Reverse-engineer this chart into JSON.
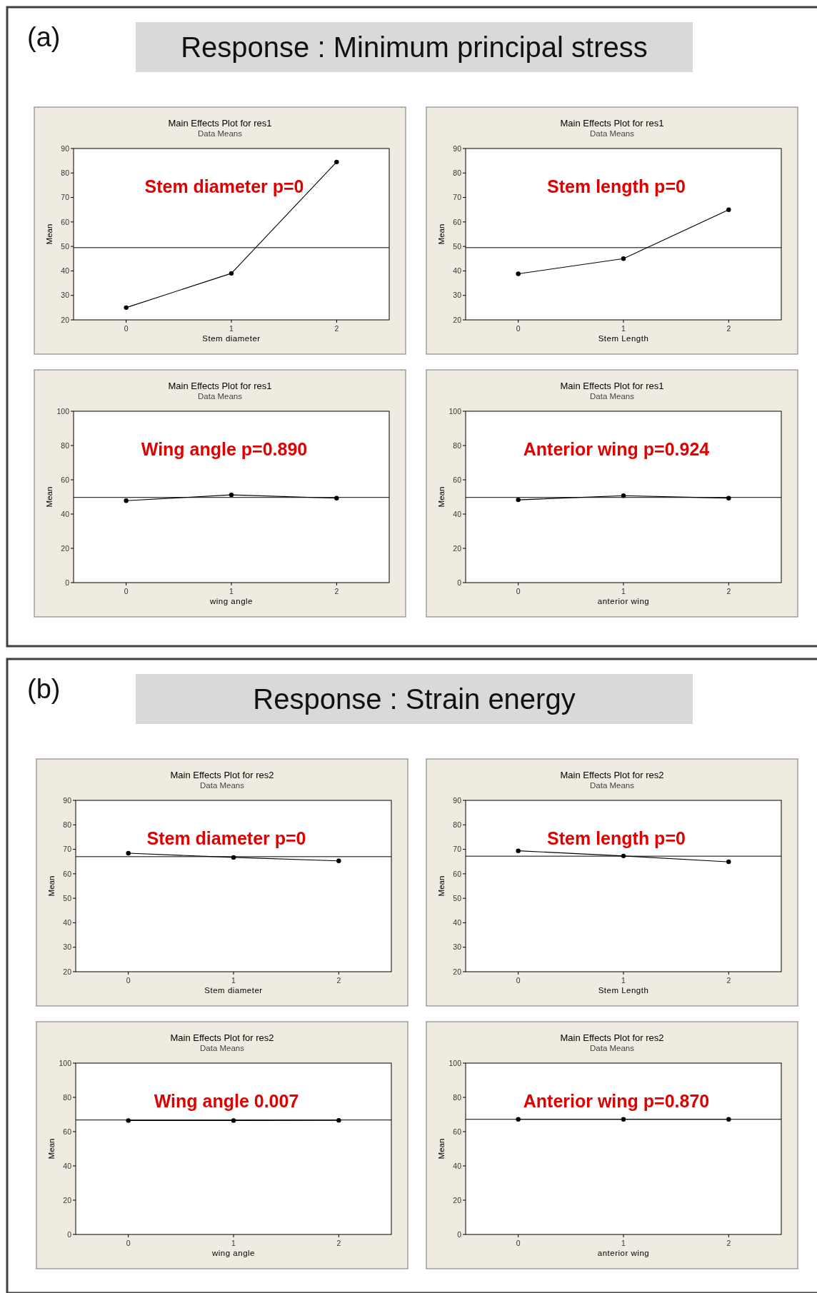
{
  "chart_data": [
    {
      "type": "other",
      "title": "Response : Minimum principal stress",
      "annotations": [
        "(a)"
      ]
    },
    {
      "type": "line",
      "title": "Main Effects Plot for res1",
      "subtitle": "Data Means",
      "xlabel": "Stem diameter",
      "ylabel": "Mean",
      "categories": [
        "0",
        "1",
        "2"
      ],
      "values": [
        25,
        39,
        84.5
      ],
      "ylim": [
        20,
        90
      ],
      "yticks": [
        20,
        30,
        40,
        50,
        60,
        70,
        80,
        90
      ],
      "ref_lines": [
        {
          "axis": "y",
          "value": 49.5
        }
      ],
      "annotations": [
        "Stem diameter p=0"
      ],
      "marker": "circle",
      "line_style": "solid",
      "grid": false
    },
    {
      "type": "line",
      "title": "Main Effects Plot for res1",
      "subtitle": "Data Means",
      "xlabel": "Stem Length",
      "ylabel": "Mean",
      "categories": [
        "0",
        "1",
        "2"
      ],
      "values": [
        38.8,
        45,
        65
      ],
      "ylim": [
        20,
        90
      ],
      "yticks": [
        20,
        30,
        40,
        50,
        60,
        70,
        80,
        90
      ],
      "ref_lines": [
        {
          "axis": "y",
          "value": 49.5
        }
      ],
      "annotations": [
        "Stem length p=0"
      ],
      "marker": "circle",
      "line_style": "solid",
      "grid": false
    },
    {
      "type": "line",
      "title": "Main Effects Plot for res1",
      "subtitle": "Data Means",
      "xlabel": "wing angle",
      "ylabel": "Mean",
      "categories": [
        "0",
        "1",
        "2"
      ],
      "values": [
        47.8,
        51.2,
        49.3
      ],
      "ylim": [
        0,
        100
      ],
      "yticks": [
        0,
        20,
        40,
        60,
        80,
        100
      ],
      "ref_lines": [
        {
          "axis": "y",
          "value": 49.7
        }
      ],
      "annotations": [
        "Wing angle p=0.890"
      ],
      "marker": "circle",
      "line_style": "solid",
      "grid": false
    },
    {
      "type": "line",
      "title": "Main Effects Plot for res1",
      "subtitle": "Data Means",
      "xlabel": "anterior wing",
      "ylabel": "Mean",
      "categories": [
        "0",
        "1",
        "2"
      ],
      "values": [
        48.3,
        50.7,
        49.3
      ],
      "ylim": [
        0,
        100
      ],
      "yticks": [
        0,
        20,
        40,
        60,
        80,
        100
      ],
      "ref_lines": [
        {
          "axis": "y",
          "value": 49.7
        }
      ],
      "annotations": [
        "Anterior wing p=0.924"
      ],
      "marker": "circle",
      "line_style": "solid",
      "grid": false
    },
    {
      "type": "other",
      "title": "Response : Strain energy",
      "annotations": [
        "(b)"
      ]
    },
    {
      "type": "line",
      "title": "Main Effects Plot for res2",
      "subtitle": "Data Means",
      "xlabel": "Stem diameter",
      "ylabel": "Mean",
      "categories": [
        "0",
        "1",
        "2"
      ],
      "values": [
        68.4,
        66.7,
        65.3
      ],
      "ylim": [
        20,
        90
      ],
      "yticks": [
        20,
        30,
        40,
        50,
        60,
        70,
        80,
        90
      ],
      "ref_lines": [
        {
          "axis": "y",
          "value": 67
        }
      ],
      "annotations": [
        "Stem diameter p=0"
      ],
      "marker": "circle",
      "line_style": "solid",
      "grid": false
    },
    {
      "type": "line",
      "title": "Main Effects Plot for res2",
      "subtitle": "Data Means",
      "xlabel": "Stem Length",
      "ylabel": "Mean",
      "categories": [
        "0",
        "1",
        "2"
      ],
      "values": [
        69.4,
        67.3,
        64.9
      ],
      "ylim": [
        20,
        90
      ],
      "yticks": [
        20,
        30,
        40,
        50,
        60,
        70,
        80,
        90
      ],
      "ref_lines": [
        {
          "axis": "y",
          "value": 67.2
        }
      ],
      "annotations": [
        "Stem length p=0"
      ],
      "marker": "circle",
      "line_style": "solid",
      "grid": false
    },
    {
      "type": "line",
      "title": "Main Effects Plot for res2",
      "subtitle": "Data Means",
      "xlabel": "wing angle",
      "ylabel": "Mean",
      "categories": [
        "0",
        "1",
        "2"
      ],
      "values": [
        66.5,
        66.5,
        66.6
      ],
      "ylim": [
        0,
        100
      ],
      "yticks": [
        0,
        20,
        40,
        60,
        80,
        100
      ],
      "ref_lines": [
        {
          "axis": "y",
          "value": 66.8
        }
      ],
      "annotations": [
        "Wing angle 0.007"
      ],
      "marker": "circle",
      "line_style": "solid",
      "grid": false
    },
    {
      "type": "line",
      "title": "Main Effects Plot for res2",
      "subtitle": "Data Means",
      "xlabel": "anterior wing",
      "ylabel": "Mean",
      "categories": [
        "0",
        "1",
        "2"
      ],
      "values": [
        67.2,
        67.2,
        67.2
      ],
      "ylim": [
        0,
        100
      ],
      "yticks": [
        0,
        20,
        40,
        60,
        80,
        100
      ],
      "ref_lines": [
        {
          "axis": "y",
          "value": 67.2
        }
      ],
      "annotations": [
        "Anterior wing p=0.870"
      ],
      "marker": "circle",
      "line_style": "solid",
      "grid": false
    }
  ]
}
